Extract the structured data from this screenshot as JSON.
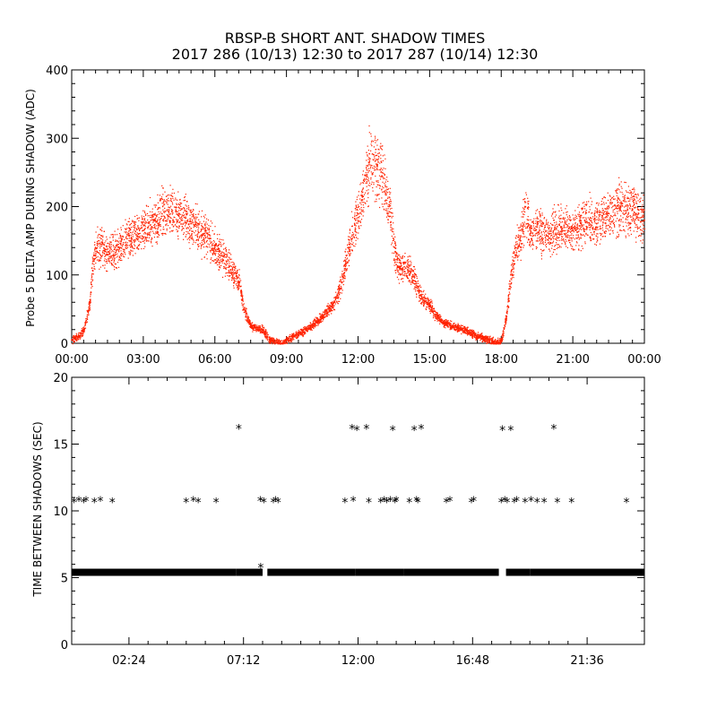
{
  "figure": {
    "title": "RBSP-B SHORT ANT. SHADOW TIMES",
    "subtitle": "2017 286 (10/13) 12:30 to 2017 287 (10/14) 12:30"
  },
  "chart_data": [
    {
      "type": "scatter",
      "ylabel": "Probe 5 DELTA AMP DURING SHADOW (ADC)",
      "xlabel": "",
      "xlim": [
        0,
        24
      ],
      "ylim": [
        0,
        400
      ],
      "x_tick_values": [
        0,
        3,
        6,
        9,
        12,
        15,
        18,
        21,
        24
      ],
      "x_tick_labels": [
        "00:00",
        "03:00",
        "06:00",
        "09:00",
        "12:00",
        "15:00",
        "18:00",
        "21:00",
        "00:00"
      ],
      "y_tick_values": [
        0,
        100,
        200,
        300,
        400
      ],
      "y_tick_labels": [
        "0",
        "100",
        "200",
        "300",
        "400"
      ],
      "color": "#ff2200",
      "grid": false,
      "series": [
        {
          "x": [
            0.0,
            0.25,
            0.5,
            0.75,
            0.85,
            1.0,
            1.25,
            1.5,
            2.0,
            2.5,
            3.0,
            3.5,
            4.0,
            4.5,
            5.0,
            5.5,
            6.0,
            6.5,
            7.0,
            7.2,
            7.5,
            8.0,
            8.3,
            8.8,
            9.0,
            9.5,
            10.0,
            10.5,
            11.0,
            11.3,
            11.6,
            11.9,
            12.2,
            12.5,
            12.8,
            13.0,
            13.3,
            13.6,
            14.0,
            14.3,
            14.6,
            15.0,
            15.3,
            15.6,
            16.0,
            16.5,
            17.0,
            17.5,
            17.9,
            18.0,
            18.2,
            18.4,
            18.6,
            18.8,
            19.0,
            19.2,
            19.5,
            20.0,
            20.5,
            21.0,
            21.5,
            22.0,
            22.5,
            23.0,
            23.5,
            24.0
          ],
          "y": [
            5,
            10,
            20,
            60,
            110,
            140,
            145,
            130,
            140,
            155,
            165,
            180,
            195,
            190,
            175,
            160,
            140,
            120,
            90,
            50,
            25,
            20,
            5,
            0,
            5,
            15,
            25,
            40,
            60,
            90,
            140,
            180,
            215,
            270,
            260,
            245,
            200,
            115,
            110,
            100,
            70,
            55,
            40,
            30,
            25,
            20,
            10,
            5,
            0,
            5,
            40,
            100,
            140,
            150,
            200,
            160,
            170,
            160,
            170,
            165,
            180,
            175,
            190,
            200,
            195,
            180
          ]
        }
      ]
    },
    {
      "type": "scatter",
      "ylabel": "TIME BETWEEN SHADOWS (SEC)",
      "xlabel": "",
      "xlim": [
        0,
        24
      ],
      "ylim": [
        0,
        20
      ],
      "x_tick_values": [
        2.4,
        7.2,
        12.0,
        16.8,
        21.6
      ],
      "x_tick_labels": [
        "02:24",
        "07:12",
        "12:00",
        "16:48",
        "21:36"
      ],
      "y_tick_values": [
        0,
        5,
        10,
        15,
        20
      ],
      "y_tick_labels": [
        "0",
        "5",
        "10",
        "15",
        "20"
      ],
      "marker": "asterisk",
      "color": "#000000",
      "grid": false,
      "baseline": {
        "y": 5.4,
        "intervals": [
          [
            0.0,
            6.9
          ],
          [
            6.9,
            8.0
          ],
          [
            8.2,
            11.9
          ],
          [
            11.9,
            13.9
          ],
          [
            13.9,
            17.9
          ],
          [
            18.2,
            19.2
          ],
          [
            19.2,
            24.0
          ]
        ]
      },
      "series": [
        {
          "x": [
            0.1,
            0.3,
            0.5,
            0.6,
            0.95,
            1.2,
            1.7,
            4.8,
            5.1,
            5.3,
            6.05,
            7.0,
            7.9,
            8.05,
            8.45,
            8.55,
            8.65,
            7.92,
            11.45,
            11.75,
            11.8,
            11.95,
            12.35,
            12.45,
            12.95,
            13.1,
            13.2,
            13.35,
            13.45,
            13.55,
            13.6,
            14.15,
            14.35,
            14.45,
            14.5,
            14.65,
            15.7,
            15.85,
            16.75,
            16.85,
            18.0,
            18.05,
            18.15,
            18.25,
            18.4,
            18.55,
            18.65,
            19.0,
            19.25,
            19.5,
            19.8,
            20.2,
            20.35,
            20.95,
            23.25
          ],
          "y": [
            10.7,
            10.8,
            10.7,
            10.8,
            10.7,
            10.8,
            10.7,
            10.7,
            10.8,
            10.7,
            10.7,
            16.2,
            10.8,
            10.7,
            10.7,
            10.8,
            10.7,
            5.8,
            10.7,
            16.2,
            10.8,
            16.1,
            16.2,
            10.7,
            10.7,
            10.8,
            10.7,
            10.8,
            16.1,
            10.7,
            10.8,
            10.7,
            16.1,
            10.8,
            10.7,
            16.2,
            10.7,
            10.8,
            10.7,
            10.8,
            10.7,
            16.1,
            10.8,
            10.7,
            16.1,
            10.7,
            10.8,
            10.7,
            10.8,
            10.7,
            10.7,
            16.2,
            10.7,
            10.7,
            10.7
          ]
        }
      ]
    }
  ]
}
